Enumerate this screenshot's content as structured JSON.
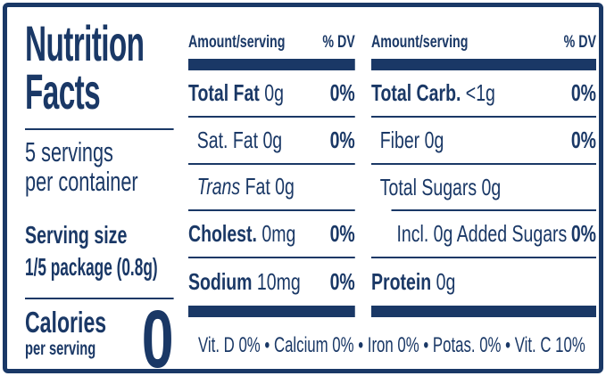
{
  "brand_color": "#1a3866",
  "left": {
    "title": "Nutrition\nFacts",
    "servings_line1": "5 servings",
    "servings_line2": "per container",
    "serving_size_label": "Serving size",
    "serving_size_value": "1/5 package (0.8g)",
    "calories_label": "Calories",
    "calories_sub": "per serving",
    "calories_value": "0"
  },
  "columns": [
    {
      "header_amount": "Amount/serving",
      "header_dv": "% DV",
      "rows": [
        {
          "bold": "Total Fat",
          "reg": " 0g",
          "dv": "0%"
        },
        {
          "reg": "Sat. Fat 0g",
          "dv": "0%"
        },
        {
          "italic": "Trans",
          "reg": " Fat 0g",
          "dv": ""
        },
        {
          "bold": "Cholest.",
          "reg": " 0mg",
          "dv": "0%"
        },
        {
          "bold": "Sodium",
          "reg": " 10mg",
          "dv": "0%"
        }
      ]
    },
    {
      "header_amount": "Amount/serving",
      "header_dv": "% DV",
      "rows": [
        {
          "bold": "Total Carb.",
          "reg": " <1g",
          "dv": "0%"
        },
        {
          "reg": "Fiber 0g",
          "dv": "0%"
        },
        {
          "reg": "Total Sugars 0g",
          "dv": ""
        },
        {
          "reg": "Incl. 0g Added Sugars",
          "dv": "0%"
        },
        {
          "bold": "Protein",
          "reg": " 0g",
          "dv": ""
        }
      ]
    }
  ],
  "footer": "Vit. D 0% • Calcium 0% • Iron 0% • Potas. 0% • Vit. C 10%"
}
